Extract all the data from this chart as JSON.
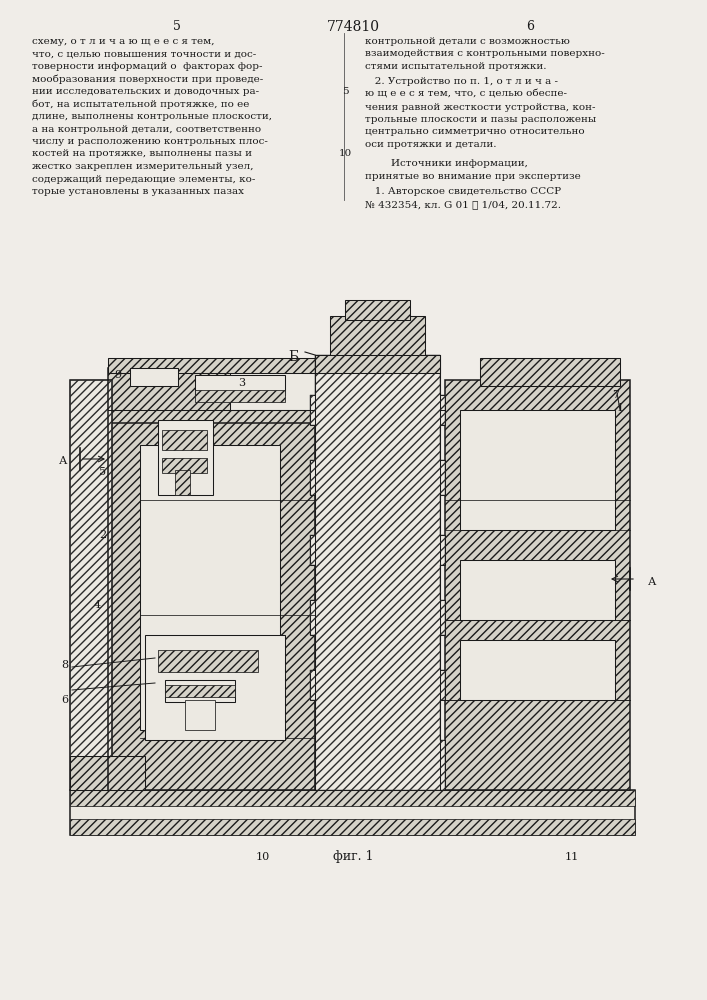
{
  "page_width": 7.07,
  "page_height": 10.0,
  "bg_color": "#f0ede8",
  "text_color": "#1a1a1a",
  "header_left_num": "5",
  "header_center": "774810",
  "header_right_num": "6",
  "col1_lines": [
    "схему, о т л и ч а ю щ е е с я тем,",
    "что, с целью повышения точности и дос-",
    "товерности информаций о  факторах фор-",
    "мообразования поверхности при проведе-",
    "нии исследовательских и доводочных ра-",
    "бот, на испытательной протяжке, по ее",
    "длине, выполнены контрольные плоскости,",
    "а на контрольной детали, соответственно",
    "числу и расположению контрольных плос-",
    "костей на протяжке, выполнены пазы и",
    "жестко закреплен измерительный узел,",
    "содержащий передающие элементы, ко-",
    "торые установлены в указанных пазах"
  ],
  "col2a": [
    "контрольной детали с возможностью",
    "взаимодействия с контрольными поверхно-",
    "стями испытательной протяжки."
  ],
  "col2b": [
    "   2. Устройство по п. 1, о т л и ч а -",
    "ю щ е е с я тем, что, с целью обеспе-",
    "чения равной жесткости устройства, кон-",
    "трольные плоскости и пазы расположены",
    "центрально симметрично относительно",
    "оси протяжки и детали."
  ],
  "sources_hdr": "        Источники информации,",
  "sources_sub": "принятые во внимание при экспертизе",
  "source1": "   1. Авторское свидетельство СССР",
  "source2": "№ 432354, кл. G 01 ℓ 1/04, 20.11.72.",
  "fig_caption": "фиг. 1"
}
